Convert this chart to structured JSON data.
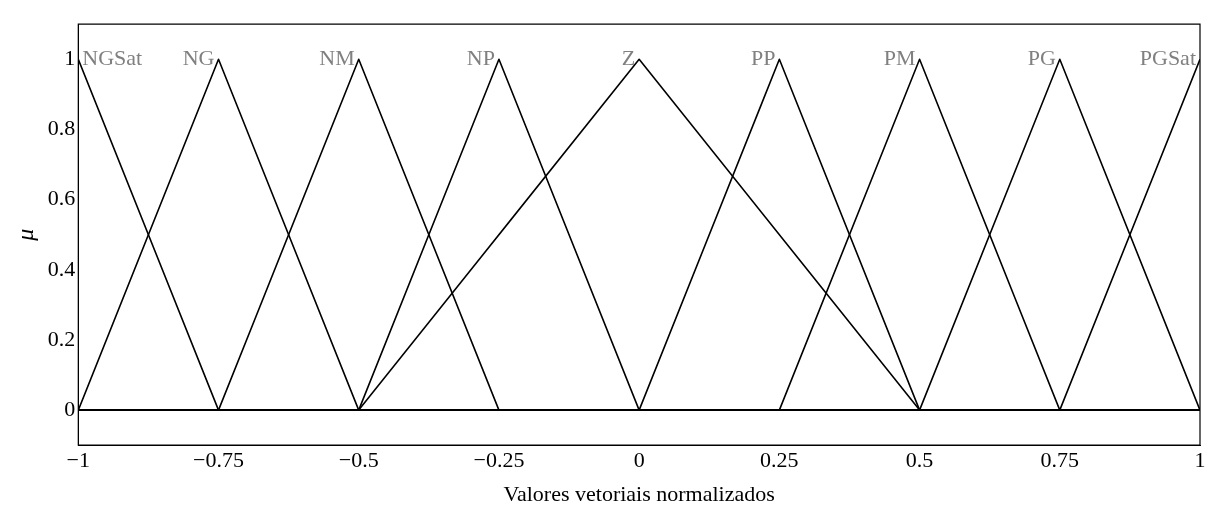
{
  "chart_data": {
    "type": "line",
    "xlabel": "Valores vetoriais normalizados",
    "ylabel": "μ",
    "xlim": [
      -1,
      1
    ],
    "ylim": [
      -0.1,
      1.1
    ],
    "xticks": [
      {
        "value": -1,
        "label": "−1"
      },
      {
        "value": -0.75,
        "label": "−0.75"
      },
      {
        "value": -0.5,
        "label": "−0.5"
      },
      {
        "value": -0.25,
        "label": "−0.25"
      },
      0,
      0.25,
      0.5,
      0.75,
      1
    ],
    "yticks": [
      0,
      0.2,
      0.4,
      0.6,
      0.8,
      1
    ],
    "grid": false,
    "legend": false,
    "marker": "none",
    "line_style": "solid",
    "series": [
      {
        "name": "NGSat",
        "color": "#000000",
        "x": [
          -1,
          -0.75,
          1
        ],
        "values": [
          1,
          0,
          0
        ]
      },
      {
        "name": "NG",
        "color": "#000000",
        "x": [
          -1,
          -0.75,
          -0.5,
          1
        ],
        "values": [
          0,
          1,
          0,
          0
        ]
      },
      {
        "name": "NM",
        "color": "#000000",
        "x": [
          -1,
          -0.75,
          -0.5,
          -0.25,
          1
        ],
        "values": [
          0,
          0,
          1,
          0,
          0
        ]
      },
      {
        "name": "NP",
        "color": "#000000",
        "x": [
          -1,
          -0.5,
          -0.25,
          0,
          1
        ],
        "values": [
          0,
          0,
          1,
          0,
          0
        ]
      },
      {
        "name": "Z",
        "color": "#000000",
        "x": [
          -1,
          -0.5,
          0,
          0.5,
          1
        ],
        "values": [
          0,
          0,
          1,
          0,
          0
        ]
      },
      {
        "name": "PP",
        "color": "#000000",
        "x": [
          -1,
          0,
          0.25,
          0.5,
          1
        ],
        "values": [
          0,
          0,
          1,
          0,
          0
        ]
      },
      {
        "name": "PM",
        "color": "#000000",
        "x": [
          -1,
          0.25,
          0.5,
          0.75,
          1
        ],
        "values": [
          0,
          0,
          1,
          0,
          0
        ]
      },
      {
        "name": "PG",
        "color": "#000000",
        "x": [
          -1,
          0.5,
          0.75,
          1
        ],
        "values": [
          0,
          0,
          1,
          0
        ]
      },
      {
        "name": "PGSat",
        "color": "#000000",
        "x": [
          -1,
          0.75,
          1
        ],
        "values": [
          0,
          0,
          1
        ]
      }
    ]
  }
}
